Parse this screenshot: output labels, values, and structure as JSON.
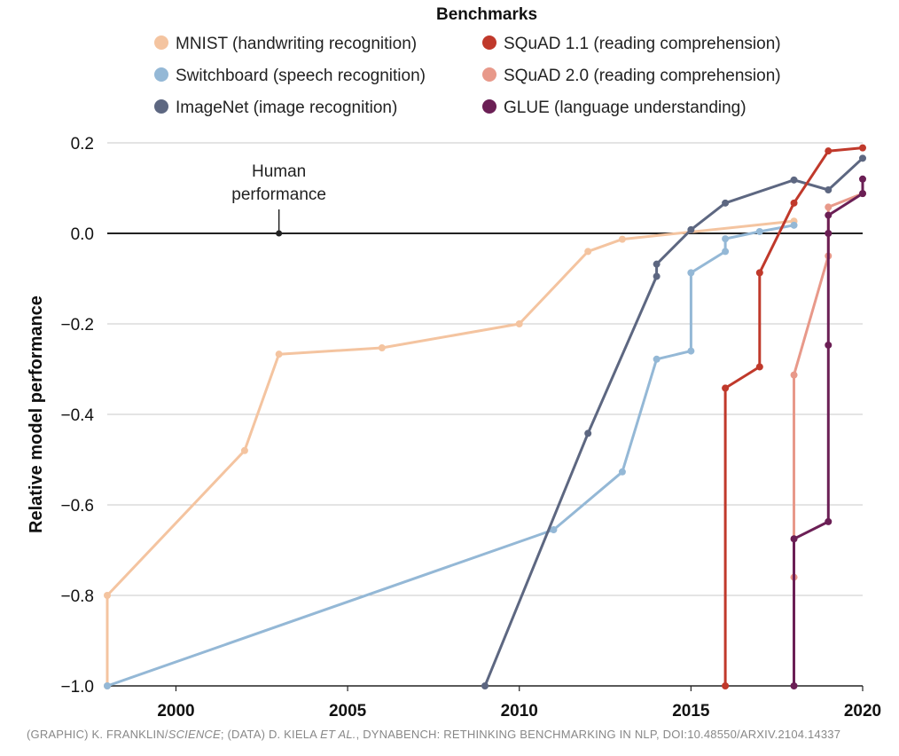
{
  "chart_data": {
    "type": "line",
    "legend_title": "Benchmarks",
    "legend_placement": "top",
    "ylabel": "Relative model performance",
    "xlabel": "",
    "xlim": [
      1998,
      2020
    ],
    "ylim": [
      -1.0,
      0.2
    ],
    "x_ticks": [
      2000,
      2005,
      2010,
      2015,
      2020
    ],
    "y_ticks": [
      0.2,
      0.0,
      -0.2,
      -0.4,
      -0.6,
      -0.8,
      -1.0
    ],
    "y_tick_labels": [
      "0.2",
      "0.0",
      "−0.2",
      "−0.4",
      "−0.6",
      "−0.8",
      "−1.0"
    ],
    "grid": "horizontal",
    "annotation": {
      "lines": [
        "Human",
        "performance"
      ],
      "x": 2003,
      "y": 0.0
    },
    "reference_line_y": 0.0,
    "series": [
      {
        "name": "MNIST (handwriting recognition)",
        "color": "#f4c4a0",
        "points": [
          [
            1998,
            -1.0
          ],
          [
            1998,
            -0.8
          ],
          [
            2002,
            -0.48
          ],
          [
            2003,
            -0.267
          ],
          [
            2006,
            -0.253
          ],
          [
            2010,
            -0.2
          ],
          [
            2012,
            -0.04
          ],
          [
            2013,
            -0.013
          ],
          [
            2018,
            0.027
          ]
        ]
      },
      {
        "name": "Switchboard (speech recognition)",
        "color": "#94b8d6",
        "points": [
          [
            1998,
            -1.0
          ],
          [
            2011,
            -0.655
          ],
          [
            2013,
            -0.527
          ],
          [
            2014,
            -0.278
          ],
          [
            2015,
            -0.26
          ],
          [
            2015,
            -0.087
          ],
          [
            2016,
            -0.04
          ],
          [
            2016,
            -0.012
          ],
          [
            2017,
            0.004
          ],
          [
            2018,
            0.018
          ]
        ]
      },
      {
        "name": "ImageNet (image recognition)",
        "color": "#5d6781",
        "points": [
          [
            2009,
            -1.0
          ],
          [
            2012,
            -0.442
          ],
          [
            2014,
            -0.095
          ],
          [
            2014,
            -0.068
          ],
          [
            2015,
            0.008
          ],
          [
            2016,
            0.067
          ],
          [
            2018,
            0.118
          ],
          [
            2019,
            0.096
          ],
          [
            2020,
            0.166
          ]
        ]
      },
      {
        "name": "SQuAD 1.1 (reading comprehension)",
        "color": "#c0392b",
        "points": [
          [
            2016,
            -1.0
          ],
          [
            2016,
            -0.342
          ],
          [
            2017,
            -0.295
          ],
          [
            2017,
            -0.087
          ],
          [
            2018,
            0.067
          ],
          [
            2019,
            0.182
          ],
          [
            2020,
            0.189
          ]
        ]
      },
      {
        "name": "SQuAD 2.0 (reading comprehension)",
        "color": "#e8998a",
        "points": [
          [
            2018,
            -0.76
          ],
          [
            2018,
            -0.313
          ],
          [
            2019,
            -0.05
          ],
          [
            2019,
            0.058
          ],
          [
            2020,
            0.088
          ]
        ]
      },
      {
        "name": "GLUE (language understanding)",
        "color": "#6b1f55",
        "points": [
          [
            2018,
            -1.0
          ],
          [
            2018,
            -0.675
          ],
          [
            2019,
            -0.637
          ],
          [
            2019,
            -0.247
          ],
          [
            2019,
            0.0
          ],
          [
            2019,
            0.04
          ],
          [
            2020,
            0.088
          ],
          [
            2020,
            0.12
          ]
        ]
      }
    ]
  },
  "credit": {
    "part1": "(GRAPHIC) K. FRANKLIN/",
    "italic1": "SCIENCE",
    "part2": "; (DATA) D. KIELA ",
    "italic2": "ET AL.",
    "part3": ", DYNABENCH: RETHINKING BENCHMARKING IN NLP, DOI:10.48550/ARXIV.2104.14337"
  }
}
